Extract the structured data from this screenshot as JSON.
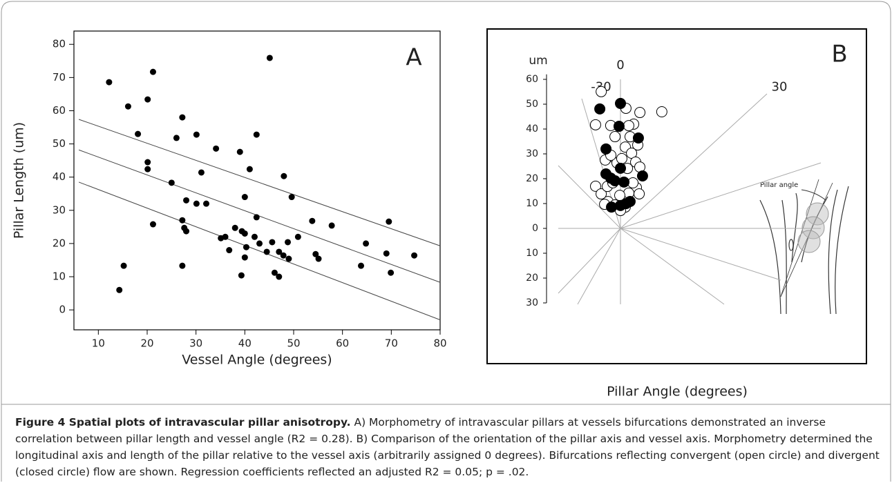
{
  "chart_data": [
    {
      "type": "scatter",
      "panel_label": "A",
      "xlabel": "Vessel Angle (degrees)",
      "ylabel": "Pillar Length (um)",
      "xlim": [
        5,
        80
      ],
      "ylim": [
        -6,
        84
      ],
      "xticks": [
        10,
        20,
        30,
        40,
        50,
        60,
        70,
        80
      ],
      "yticks": [
        0,
        10,
        20,
        30,
        40,
        50,
        60,
        70,
        80
      ],
      "color": "#000000",
      "x": [
        12.2,
        14.3,
        15.2,
        16.1,
        18.1,
        20.1,
        20.1,
        20.1,
        21.2,
        21.2,
        25,
        26,
        27.2,
        27.2,
        27.2,
        27.6,
        28,
        28,
        30.1,
        30.1,
        31.1,
        32.1,
        34.1,
        35.1,
        36,
        36.8,
        38,
        39,
        39.3,
        39.4,
        40,
        40,
        40,
        40.3,
        41,
        42,
        42.4,
        42.4,
        43,
        44.5,
        45.1,
        45.6,
        46.1,
        47,
        47,
        48,
        47.9,
        48.8,
        49,
        49.6,
        50.9,
        53.8,
        54.5,
        55.1,
        57.8,
        63.8,
        64.8,
        69,
        69.5,
        69.9,
        74.7
      ],
      "values": [
        68.6,
        6,
        13.3,
        61.3,
        53,
        63.4,
        44.5,
        42.4,
        71.7,
        25.8,
        38.3,
        51.8,
        58,
        27,
        13.3,
        24.7,
        23.7,
        33,
        52.8,
        32,
        41.4,
        32,
        48.6,
        21.6,
        22,
        18,
        24.7,
        47.6,
        10.4,
        23.7,
        34,
        23,
        15.8,
        18.9,
        42.4,
        22,
        27.9,
        52.8,
        20,
        17.5,
        75.9,
        20.4,
        11.2,
        10,
        17.5,
        40.3,
        16.4,
        20.4,
        15.4,
        34,
        22,
        26.8,
        16.8,
        15.4,
        25.4,
        13.3,
        20,
        17,
        26.6,
        11.2,
        16.4
      ],
      "regression_lines": [
        {
          "x": [
            6,
            80
          ],
          "values": [
            57.4,
            19.3
          ]
        },
        {
          "x": [
            6,
            80
          ],
          "values": [
            48.2,
            8.3
          ]
        },
        {
          "x": [
            6,
            80
          ],
          "values": [
            38.5,
            -3
          ]
        }
      ]
    },
    {
      "type": "polar",
      "panel_label": "B",
      "xlabel": "Pillar Angle (degrees)",
      "ylabel": "um",
      "ylim": [
        -30,
        62
      ],
      "yticks": [
        {
          "value": -30,
          "label": "30"
        },
        {
          "value": -20,
          "label": "20"
        },
        {
          "value": -10,
          "label": "10"
        },
        0,
        10,
        20,
        30,
        40,
        50,
        60
      ],
      "angle_ticks": [
        -30,
        0,
        30
      ],
      "annotation": "Pillar angle",
      "series": [
        {
          "marker": "open",
          "color": "#000000",
          "x": [
            -8,
            2.6,
            9.5,
            19.5,
            -13.5,
            -5.4,
            7.2,
            -3.4,
            6,
            11.7,
            3.4,
            -8.2,
            8.4,
            -3,
            12.9,
            -12.5,
            6.6,
            17.5,
            -30.5,
            -29.2,
            -17.3,
            21.3,
            28.4,
            -24.8,
            13.2,
            -1.2,
            -13.2,
            12.7,
            0,
            -33.3,
            -7.5,
            1.1,
            15.3,
            -9.5,
            4.6
          ],
          "values": [
            55.6,
            48.4,
            47.3,
            49.8,
            42.9,
            41.6,
            42.3,
            37,
            37.1,
            34.3,
            32.8,
            29.2,
            30.6,
            26.4,
            27.4,
            28.2,
            24.3,
            25.9,
            19.7,
            15.9,
            17.7,
            17.6,
            15.8,
            11.9,
            14.6,
            13.3,
            9.7,
            8.8,
            7.2,
            11.6,
            29.7,
            28.1,
            19,
            18.6,
            41.5
          ]
        },
        {
          "marker": "filled",
          "color": "#000000",
          "x": [
            -9.8,
            0,
            -0.8,
            11.2,
            -10.3,
            -14.9,
            22.8,
            0,
            -10.9,
            -6.6,
            4.3,
            19.7,
            12.5,
            0,
            -22.8
          ],
          "values": [
            48.8,
            50.3,
            41.1,
            37.1,
            32.5,
            22.7,
            22.9,
            24.2,
            20.6,
            19.3,
            18.7,
            11.5,
            10.2,
            9.2,
            9.3
          ]
        }
      ]
    }
  ],
  "caption": {
    "title": "Figure 4 Spatial plots of intravascular pillar anisotropy.",
    "text": "A) Morphometry of intravascular pillars at vessels bifurcations demonstrated an inverse correlation between pillar length and vessel angle (R2 = 0.28). B) Comparison of the orientation of the pillar axis and vessel axis. Morphometry determined the longitudinal axis and length of the pillar relative to the vessel axis (arbitrarily assigned 0 degrees). Bifurcations reflecting convergent (open circle) and divergent (closed circle) flow are shown. Regression coefficients reflected an adjusted R2 = 0.05; p = .02."
  }
}
